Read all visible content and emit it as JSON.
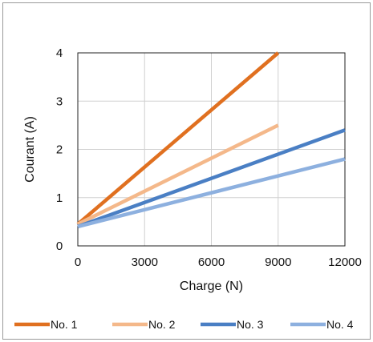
{
  "chart_data": {
    "type": "line",
    "xlabel": "Charge (N)",
    "ylabel": "Courant (A)",
    "xlim": [
      0,
      12000
    ],
    "ylim": [
      0,
      4
    ],
    "x_ticks": [
      "0",
      "3000",
      "6000",
      "9000",
      "12000"
    ],
    "y_ticks": [
      "0",
      "1",
      "2",
      "3",
      "4"
    ],
    "grid": true,
    "legend_position": "bottom",
    "series": [
      {
        "name": "No. 1",
        "color": "#e07020",
        "x": [
          0,
          9000
        ],
        "y": [
          0.45,
          4.0
        ]
      },
      {
        "name": "No. 2",
        "color": "#f4b88a",
        "x": [
          0,
          9000
        ],
        "y": [
          0.45,
          2.5
        ]
      },
      {
        "name": "No. 3",
        "color": "#4a7fc4",
        "x": [
          0,
          12000
        ],
        "y": [
          0.4,
          2.4
        ]
      },
      {
        "name": "No. 4",
        "color": "#8db0df",
        "x": [
          0,
          12000
        ],
        "y": [
          0.4,
          1.8
        ]
      }
    ]
  }
}
